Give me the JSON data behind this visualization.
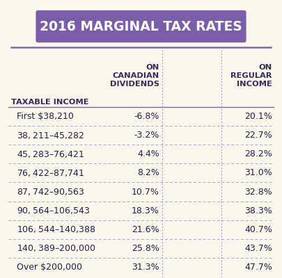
{
  "title": "2016 MARGINAL TAX RATES",
  "title_bg": "#7b5ea7",
  "title_color": "#ffffff",
  "bg_color": "#faf8ec",
  "header_color": "#3a2a5a",
  "col_headers": [
    "TAXABLE INCOME",
    "ON\nCANADIAN\nDIVIDENDS",
    "ON\nREGULAR\nINCOME"
  ],
  "rows": [
    [
      "First $38,210",
      "-6.8%",
      "20.1%"
    ],
    [
      "$38,211–$45,282",
      "-3.2%",
      "22.7%"
    ],
    [
      "$45,283–$76,421",
      "4.4%",
      "28.2%"
    ],
    [
      "$76,422–$87,741",
      "8.2%",
      "31.0%"
    ],
    [
      "$87,742–$90,563",
      "10.7%",
      "32.8%"
    ],
    [
      "$90,564–$106,543",
      "18.3%",
      "38.3%"
    ],
    [
      "$106,544–$140,388",
      "21.6%",
      "40.7%"
    ],
    [
      "$140,389–$200,000",
      "25.8%",
      "43.7%"
    ],
    [
      "Over $200,000",
      "31.3%",
      "47.7%"
    ]
  ],
  "divider_color": "#9988cc",
  "header_line_color": "#7a68aa",
  "row_text_color": "#2a1a4a",
  "data_text_color": "#2a1a4a",
  "title_fontsize": 13.5,
  "header_fontsize": 8.2,
  "row_fontsize": 9.0
}
